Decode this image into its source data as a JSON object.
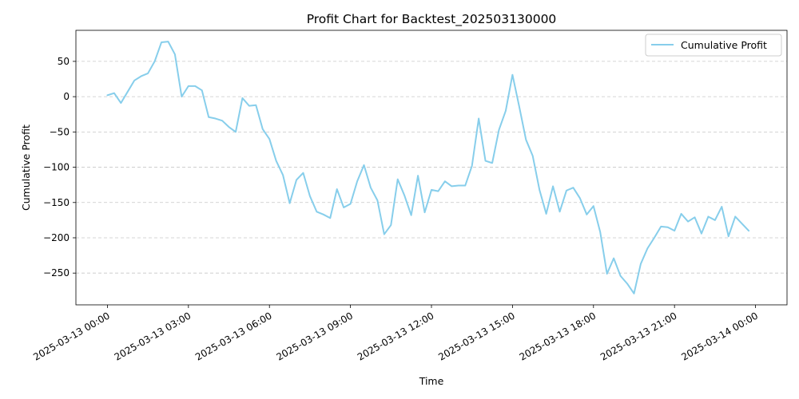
{
  "chart_data": {
    "type": "line",
    "title": "Profit Chart for Backtest_202503130000",
    "xlabel": "Time",
    "ylabel": "Cumulative Profit",
    "x_tick_labels": [
      "2025-03-13 00:00",
      "2025-03-13 03:00",
      "2025-03-13 06:00",
      "2025-03-13 09:00",
      "2025-03-13 12:00",
      "2025-03-13 15:00",
      "2025-03-13 18:00",
      "2025-03-13 21:00",
      "2025-03-14 00:00"
    ],
    "x_tick_hours": [
      0,
      3,
      6,
      9,
      12,
      15,
      18,
      21,
      24
    ],
    "y_ticks": [
      50,
      0,
      -50,
      -100,
      -150,
      -200,
      -250
    ],
    "xlim": [
      "2025-03-12 22:50",
      "2025-03-14 01:10"
    ],
    "ylim": [
      -295,
      94
    ],
    "grid": "y-dashed",
    "legend_position": "upper-right",
    "series": [
      {
        "name": "Cumulative Profit",
        "color": "#87CEEB",
        "x_start": "2025-03-13 00:00",
        "x_step_minutes": 15,
        "values": [
          2,
          5,
          -9,
          7,
          23,
          29,
          33,
          50,
          77,
          78,
          60,
          0,
          15,
          15,
          9,
          -29,
          -31,
          -34,
          -43,
          -50,
          -2,
          -13,
          -12,
          -46,
          -60,
          -91,
          -111,
          -151,
          -118,
          -108,
          -141,
          -163,
          -167,
          -172,
          -131,
          -157,
          -152,
          -120,
          -97,
          -129,
          -147,
          -195,
          -182,
          -117,
          -140,
          -168,
          -112,
          -164,
          -132,
          -134,
          -120,
          -127,
          -126,
          -126,
          -98,
          -31,
          -91,
          -94,
          -47,
          -20,
          31,
          -14,
          -61,
          -84,
          -132,
          -166,
          -127,
          -163,
          -133,
          -129,
          -144,
          -167,
          -155,
          -192,
          -251,
          -229,
          -254,
          -265,
          -279,
          -237,
          -215,
          -200,
          -184,
          -185,
          -190,
          -166,
          -177,
          -171,
          -194,
          -170,
          -175,
          -156,
          -198,
          -170,
          -180,
          -190
        ]
      }
    ]
  }
}
